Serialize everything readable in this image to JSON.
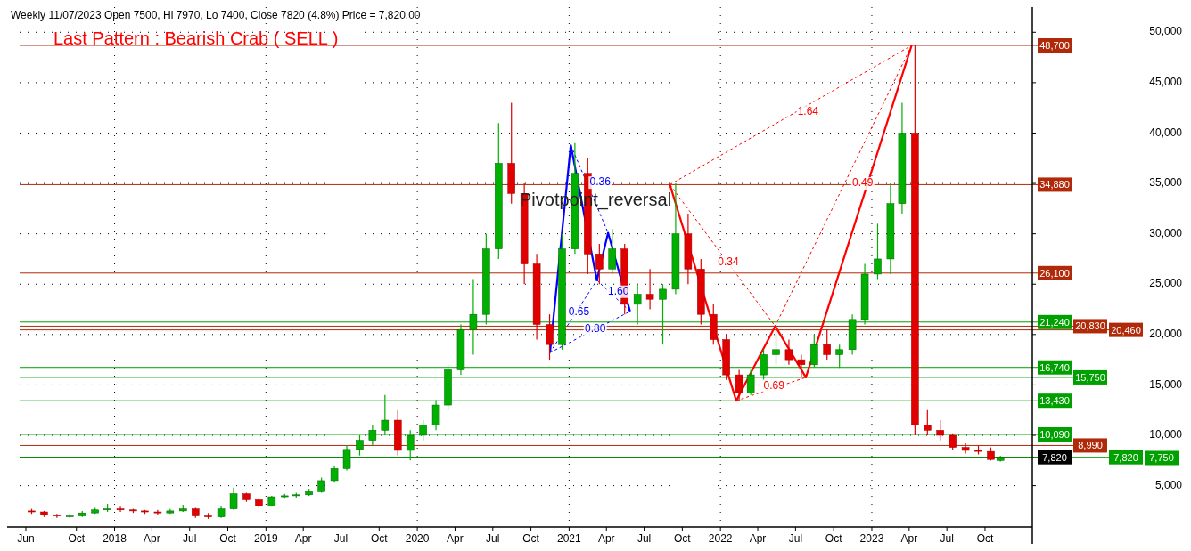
{
  "chart_data": {
    "type": "candlestick",
    "title": "Weekly 11/07/2023 Open 7500, Hi 7970, Lo 7400, Close 7820 (4.8%) Price = 7,820.00",
    "subtitle": "Last Pattern : Bearish Crab ( SELL )",
    "x": [
      "2017-06-15",
      "2017-07-15",
      "2017-08-15",
      "2017-09-15",
      "2017-10-15",
      "2017-11-15",
      "2017-12-15",
      "2018-01-15",
      "2018-02-15",
      "2018-03-15",
      "2018-04-15",
      "2018-05-15",
      "2018-06-15",
      "2018-07-15",
      "2018-08-15",
      "2018-09-15",
      "2018-10-15",
      "2018-11-15",
      "2018-12-15",
      "2019-01-15",
      "2019-02-15",
      "2019-03-15",
      "2019-04-15",
      "2019-05-15",
      "2019-06-15",
      "2019-07-15",
      "2019-08-15",
      "2019-09-15",
      "2019-10-15",
      "2019-11-15",
      "2019-12-15",
      "2020-01-15",
      "2020-02-15",
      "2020-03-15",
      "2020-04-15",
      "2020-05-15",
      "2020-06-15",
      "2020-07-15",
      "2020-08-15",
      "2020-09-15",
      "2020-10-15",
      "2020-11-15",
      "2020-12-15",
      "2021-01-15",
      "2021-02-15",
      "2021-03-15",
      "2021-04-15",
      "2021-05-15",
      "2021-06-15",
      "2021-07-15",
      "2021-08-15",
      "2021-09-15",
      "2021-10-15",
      "2021-11-15",
      "2021-12-15",
      "2022-01-15",
      "2022-02-15",
      "2022-03-15",
      "2022-04-15",
      "2022-05-15",
      "2022-06-15",
      "2022-07-15",
      "2022-08-15",
      "2022-09-15",
      "2022-10-15",
      "2022-11-15",
      "2022-12-15",
      "2023-01-15",
      "2023-02-15",
      "2023-03-15",
      "2023-04-15",
      "2023-05-15",
      "2023-06-15",
      "2023-07-15",
      "2023-08-15",
      "2023-09-15",
      "2023-10-15",
      "2023-11-07"
    ],
    "ohlc": [
      [
        2500,
        2700,
        2200,
        2400
      ],
      [
        2400,
        2500,
        1900,
        2100
      ],
      [
        2100,
        2200,
        1800,
        2000
      ],
      [
        2000,
        2200,
        1800,
        2000
      ],
      [
        2000,
        2500,
        1900,
        2300
      ],
      [
        2300,
        2800,
        2200,
        2600
      ],
      [
        2600,
        3200,
        2400,
        2700
      ],
      [
        2700,
        2900,
        2400,
        2600
      ],
      [
        2600,
        2700,
        2300,
        2500
      ],
      [
        2500,
        2600,
        2200,
        2400
      ],
      [
        2400,
        2600,
        2100,
        2300
      ],
      [
        2300,
        2700,
        2200,
        2500
      ],
      [
        2500,
        3100,
        2400,
        2700
      ],
      [
        2700,
        2800,
        1800,
        2000
      ],
      [
        2000,
        2300,
        1700,
        1900
      ],
      [
        1900,
        3000,
        1800,
        2700
      ],
      [
        2700,
        4800,
        2600,
        4200
      ],
      [
        4200,
        4300,
        3400,
        3600
      ],
      [
        3600,
        3700,
        2800,
        3000
      ],
      [
        3000,
        4000,
        2900,
        3900
      ],
      [
        3900,
        4200,
        3700,
        4000
      ],
      [
        4000,
        4300,
        3800,
        4100
      ],
      [
        4100,
        4700,
        4000,
        4400
      ],
      [
        4400,
        5800,
        4300,
        5500
      ],
      [
        5500,
        7000,
        5300,
        6700
      ],
      [
        6700,
        9000,
        6500,
        8600
      ],
      [
        8600,
        10000,
        8000,
        9500
      ],
      [
        9500,
        11000,
        9000,
        10500
      ],
      [
        10500,
        14000,
        10000,
        11500
      ],
      [
        11500,
        12500,
        8000,
        8500
      ],
      [
        8500,
        10500,
        7500,
        10000
      ],
      [
        10000,
        11500,
        9500,
        11000
      ],
      [
        11000,
        13500,
        10500,
        13000
      ],
      [
        13000,
        17000,
        12500,
        16500
      ],
      [
        16500,
        21000,
        16000,
        20500
      ],
      [
        20500,
        25500,
        18000,
        22000
      ],
      [
        22000,
        30000,
        21000,
        28500
      ],
      [
        28500,
        41000,
        27500,
        37000
      ],
      [
        37000,
        43000,
        33000,
        34000
      ],
      [
        34000,
        35000,
        25000,
        27000
      ],
      [
        27000,
        28000,
        19500,
        21000
      ],
      [
        21000,
        22000,
        17500,
        19000
      ],
      [
        19000,
        30000,
        18500,
        28500
      ],
      [
        28500,
        39000,
        28000,
        36000
      ],
      [
        36000,
        37500,
        26000,
        28000
      ],
      [
        28000,
        29000,
        25000,
        26500
      ],
      [
        26500,
        30500,
        26000,
        28500
      ],
      [
        28500,
        29000,
        22000,
        23000
      ],
      [
        23000,
        25000,
        21000,
        24000
      ],
      [
        24000,
        26500,
        22500,
        23500
      ],
      [
        23500,
        25000,
        19000,
        24500
      ],
      [
        24500,
        35000,
        24000,
        30000
      ],
      [
        30000,
        32000,
        25000,
        26500
      ],
      [
        26500,
        27500,
        21000,
        22000
      ],
      [
        22000,
        23000,
        19000,
        19500
      ],
      [
        19500,
        20000,
        15500,
        16000
      ],
      [
        16000,
        16500,
        13400,
        14200
      ],
      [
        14200,
        16500,
        14000,
        16000
      ],
      [
        16000,
        18500,
        15500,
        18000
      ],
      [
        18000,
        20800,
        17000,
        18500
      ],
      [
        18500,
        19500,
        17000,
        17500
      ],
      [
        17500,
        18000,
        15750,
        17000
      ],
      [
        17000,
        20000,
        16800,
        19000
      ],
      [
        19000,
        20500,
        17500,
        18000
      ],
      [
        18000,
        19000,
        16700,
        18500
      ],
      [
        18500,
        22000,
        18000,
        21500
      ],
      [
        21500,
        27000,
        21000,
        26000
      ],
      [
        26000,
        31000,
        25500,
        27500
      ],
      [
        27500,
        35000,
        26000,
        33000
      ],
      [
        33000,
        43000,
        32000,
        40000
      ],
      [
        40000,
        48700,
        10000,
        11000
      ],
      [
        11000,
        12500,
        10000,
        10500
      ],
      [
        10500,
        11500,
        9500,
        10000
      ],
      [
        10000,
        10200,
        8500,
        8800
      ],
      [
        8800,
        9200,
        8200,
        8500
      ],
      [
        8500,
        9000,
        8100,
        8400
      ],
      [
        8400,
        8800,
        7500,
        7600
      ],
      [
        7500,
        7970,
        7400,
        7820
      ]
    ],
    "series": [
      {
        "type": "line",
        "color": "#0000ff",
        "line_style": "solid",
        "x": [
          "2020-11-16",
          "2021-01-05",
          "2021-03-09",
          "2021-04-05",
          "2021-05-28"
        ],
        "values": [
          18200,
          38800,
          25400,
          30100,
          22300
        ]
      },
      {
        "type": "line",
        "color": "#0000ff",
        "line_style": "dashed",
        "x": [
          "2020-11-16",
          "2021-03-09"
        ],
        "values": [
          18200,
          25400
        ]
      },
      {
        "type": "line",
        "color": "#0000ff",
        "line_style": "dashed",
        "x": [
          "2021-03-09",
          "2021-05-28"
        ],
        "values": [
          25400,
          22300
        ]
      },
      {
        "type": "line",
        "color": "#0000ff",
        "line_style": "dashed",
        "x": [
          "2020-11-16",
          "2021-05-28"
        ],
        "values": [
          18200,
          22300
        ]
      },
      {
        "type": "line",
        "color": "#0000ff",
        "line_style": "dashed",
        "x": [
          "2021-01-05",
          "2021-04-05"
        ],
        "values": [
          38800,
          30100
        ]
      },
      {
        "type": "line",
        "color": "#ff0000",
        "line_style": "solid",
        "x": [
          "2021-09-01",
          "2022-02-08",
          "2022-05-13",
          "2022-07-26",
          "2023-04-07"
        ],
        "values": [
          34880,
          13430,
          20830,
          15750,
          48700
        ]
      },
      {
        "type": "line",
        "color": "#ff0000",
        "line_style": "dashed",
        "x": [
          "2021-09-01",
          "2022-05-13"
        ],
        "values": [
          34880,
          20830
        ]
      },
      {
        "type": "line",
        "color": "#ff0000",
        "line_style": "dashed",
        "x": [
          "2022-05-13",
          "2023-04-07"
        ],
        "values": [
          20830,
          48700
        ]
      },
      {
        "type": "line",
        "color": "#ff0000",
        "line_style": "dashed",
        "x": [
          "2021-09-01",
          "2023-04-07"
        ],
        "values": [
          34880,
          48700
        ]
      },
      {
        "type": "line",
        "color": "#ff0000",
        "line_style": "dashed",
        "x": [
          "2022-02-08",
          "2022-07-26"
        ],
        "values": [
          13430,
          15750
        ]
      }
    ],
    "annotations": [
      "Pivotpoint_reversal",
      {
        "text": "0.36",
        "x": "2021-03-17",
        "y": 35080
      },
      {
        "text": "1.60",
        "x": "2021-04-30",
        "y": 24250
      },
      {
        "text": "0.65",
        "x": "2021-01-25",
        "y": 22200
      },
      {
        "text": "0.80",
        "x": "2021-03-05",
        "y": 20500
      },
      {
        "text": "1.64",
        "x": "2022-07-31",
        "y": 42060
      },
      {
        "text": "0.49",
        "x": "2022-12-10",
        "y": 35000
      },
      {
        "text": "0.34",
        "x": "2022-01-20",
        "y": 27200
      },
      {
        "text": "0.69",
        "x": "2022-05-10",
        "y": 14900
      }
    ],
    "ref_lines": [
      {
        "axis": "y",
        "value": 48700,
        "label": "48,700",
        "color": "#b02a0a"
      },
      {
        "axis": "y",
        "value": 34880,
        "label": "34,880",
        "color": "#b02a0a"
      },
      {
        "axis": "y",
        "value": 26100,
        "label": "26,100",
        "color": "#b02a0a"
      },
      {
        "axis": "y",
        "value": 21240,
        "label": "21,240",
        "color": "#00a000"
      },
      {
        "axis": "y",
        "value": 20830,
        "label": "20,830",
        "color": "#b02a0a"
      },
      {
        "axis": "y",
        "value": 20460,
        "label": "20,460",
        "color": "#b02a0a"
      },
      {
        "axis": "y",
        "value": 16740,
        "label": "16,740",
        "color": "#00a000"
      },
      {
        "axis": "y",
        "value": 15750,
        "label": "15,750",
        "color": "#00a000"
      },
      {
        "axis": "y",
        "value": 13430,
        "label": "13,430",
        "color": "#00a000"
      },
      {
        "axis": "y",
        "value": 10090,
        "label": "10,090",
        "color": "#00a000"
      },
      {
        "axis": "y",
        "value": 8990,
        "label": "8,990",
        "color": "#b02a0a"
      },
      {
        "axis": "y",
        "value": 7820,
        "label": "7,820",
        "color": "#000000"
      },
      {
        "axis": "y",
        "value": 7820,
        "label": "7,820",
        "color": "#00a000"
      },
      {
        "axis": "y",
        "value": 7750,
        "label": "7,750",
        "color": "#00a000"
      }
    ],
    "xlim": [
      "2017-05-17",
      "2024-01-23"
    ],
    "xticks": [
      {
        "value": "2017-06-01",
        "label": "Jun"
      },
      {
        "value": "2017-10-01",
        "label": "Oct"
      },
      {
        "value": "2018-01-01",
        "label": "2018"
      },
      {
        "value": "2018-04-01",
        "label": "Apr"
      },
      {
        "value": "2018-07-01",
        "label": "Jul"
      },
      {
        "value": "2018-10-01",
        "label": "Oct"
      },
      {
        "value": "2019-01-01",
        "label": "2019"
      },
      {
        "value": "2019-04-01",
        "label": "Apr"
      },
      {
        "value": "2019-07-01",
        "label": "Jul"
      },
      {
        "value": "2019-10-01",
        "label": "Oct"
      },
      {
        "value": "2020-01-01",
        "label": "2020"
      },
      {
        "value": "2020-04-01",
        "label": "Apr"
      },
      {
        "value": "2020-07-01",
        "label": "Jul"
      },
      {
        "value": "2020-10-01",
        "label": "Oct"
      },
      {
        "value": "2021-01-01",
        "label": "2021"
      },
      {
        "value": "2021-04-01",
        "label": "Apr"
      },
      {
        "value": "2021-07-01",
        "label": "Jul"
      },
      {
        "value": "2021-10-01",
        "label": "Oct"
      },
      {
        "value": "2022-01-01",
        "label": "2022"
      },
      {
        "value": "2022-04-01",
        "label": "Apr"
      },
      {
        "value": "2022-07-01",
        "label": "Jul"
      },
      {
        "value": "2022-10-01",
        "label": "Oct"
      },
      {
        "value": "2023-01-01",
        "label": "2023"
      },
      {
        "value": "2023-04-01",
        "label": "Apr"
      },
      {
        "value": "2023-07-01",
        "label": "Jul"
      },
      {
        "value": "2023-10-01",
        "label": "Oct"
      }
    ],
    "ylim": [
      900,
      52500
    ],
    "yticks": [
      {
        "value": 5000,
        "label": "5,000"
      },
      {
        "value": 10000,
        "label": "10,000"
      },
      {
        "value": 15000,
        "label": "15,000"
      },
      {
        "value": 20000,
        "label": "20,000"
      },
      {
        "value": 25000,
        "label": "25,000"
      },
      {
        "value": 30000,
        "label": "30,000"
      },
      {
        "value": 35000,
        "label": "35,000"
      },
      {
        "value": 40000,
        "label": "40,000"
      },
      {
        "value": 45000,
        "label": "45,000"
      },
      {
        "value": 50000,
        "label": "50,000"
      }
    ],
    "grid": true
  }
}
